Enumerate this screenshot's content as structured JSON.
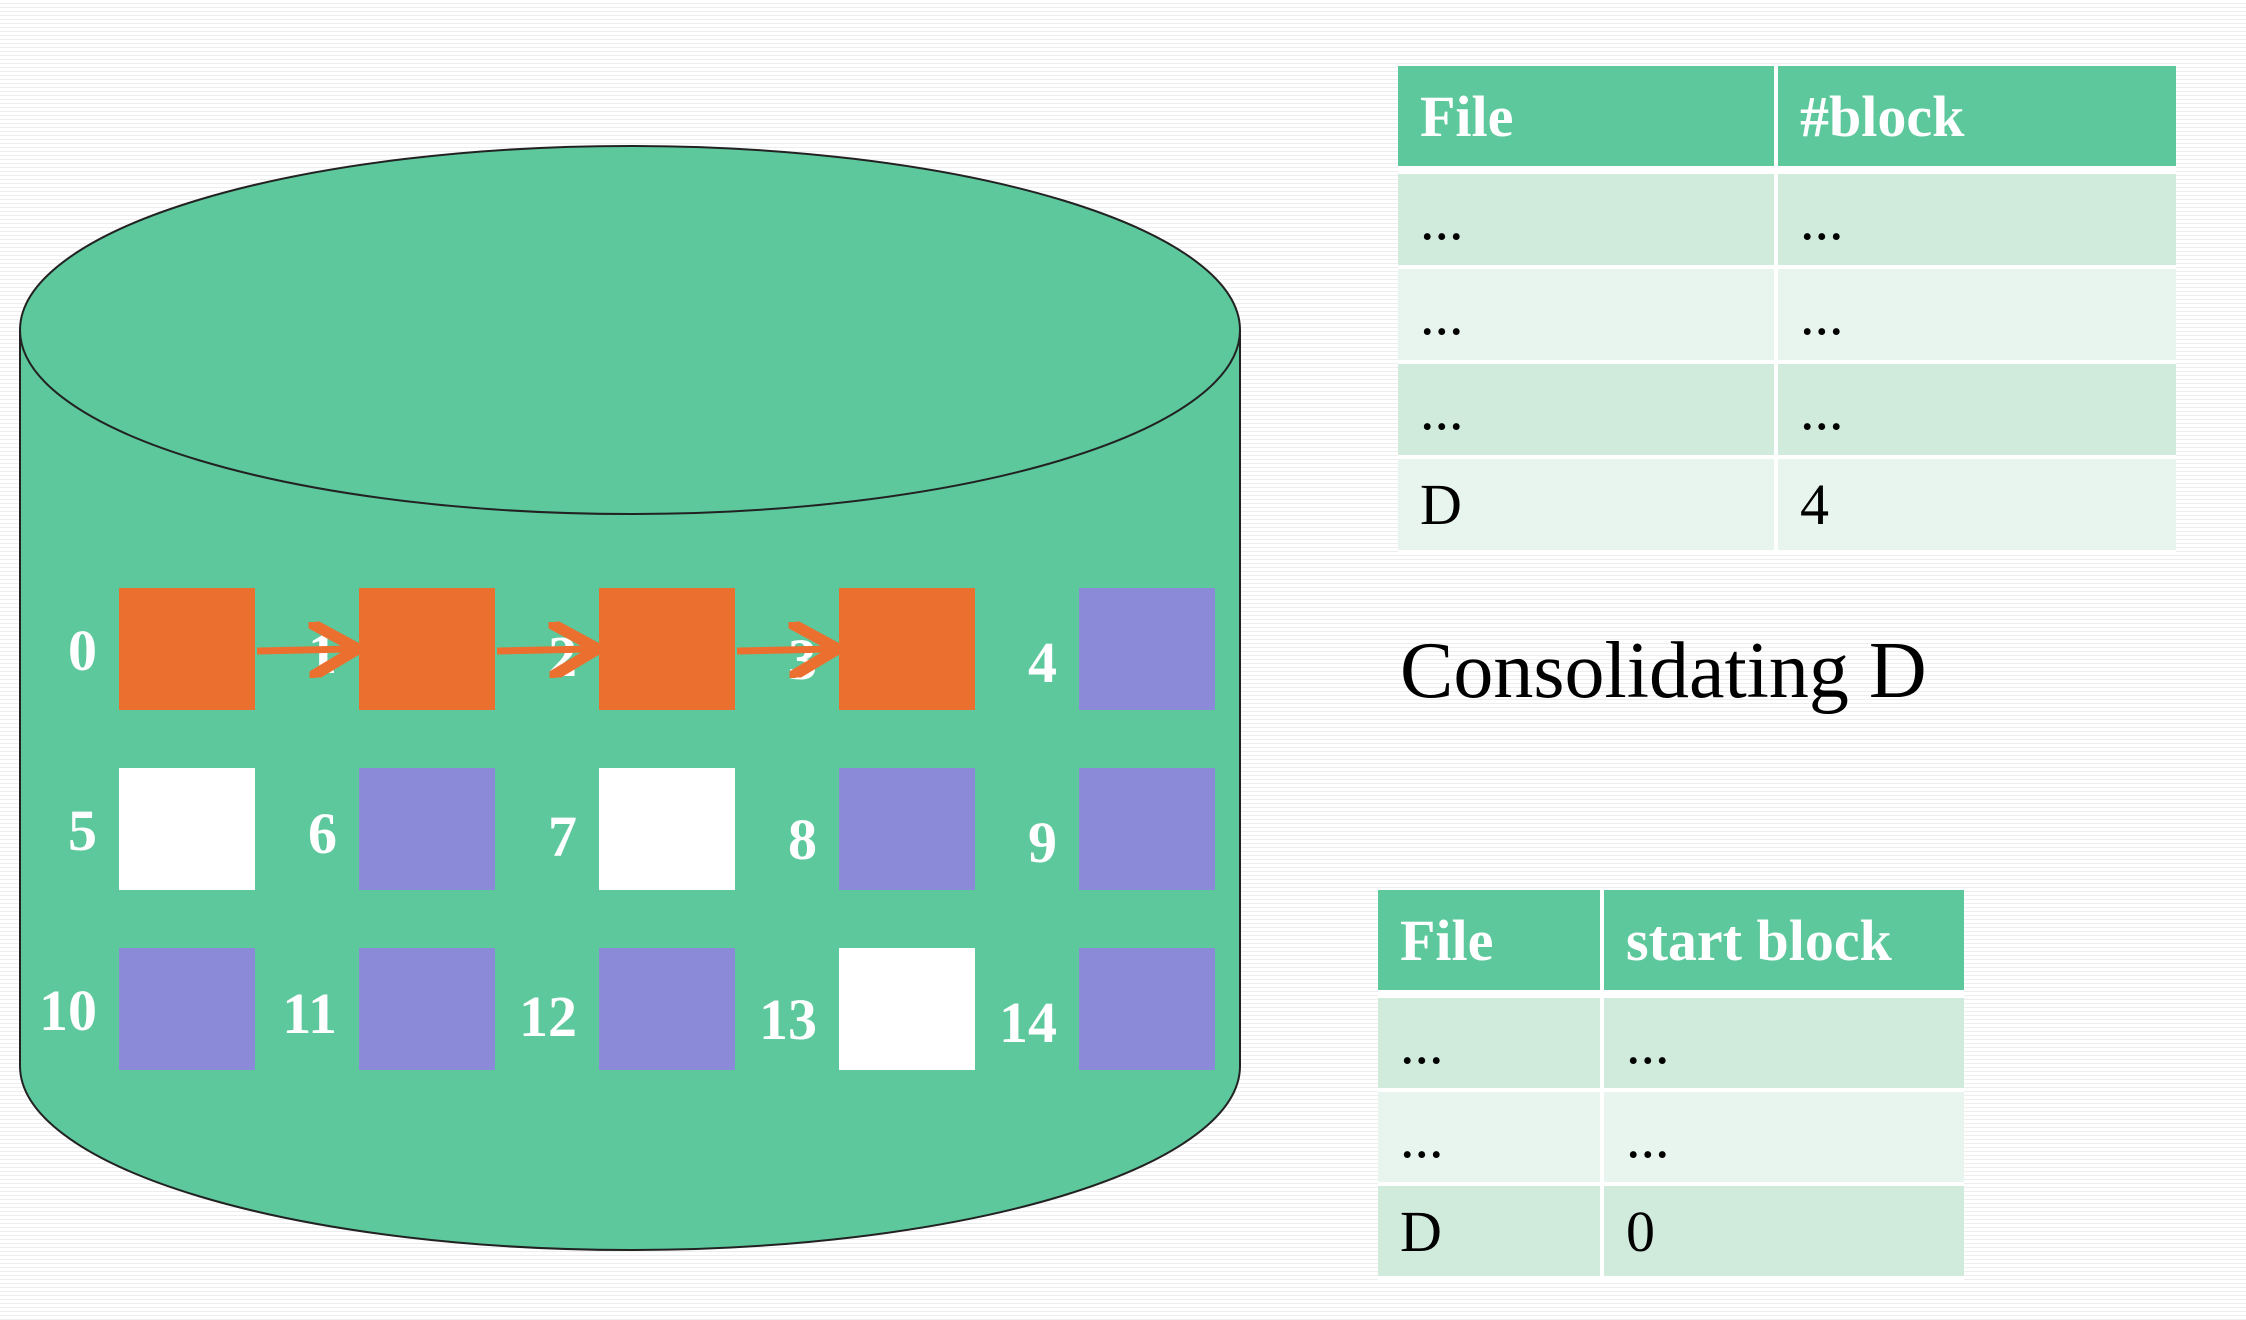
{
  "disk": {
    "blocks": [
      {
        "label": "0",
        "state": "file-d"
      },
      {
        "label": "1",
        "state": "file-d"
      },
      {
        "label": "2",
        "state": "file-d"
      },
      {
        "label": "3",
        "state": "file-d"
      },
      {
        "label": "4",
        "state": "used"
      },
      {
        "label": "5",
        "state": "free"
      },
      {
        "label": "6",
        "state": "used"
      },
      {
        "label": "7",
        "state": "free"
      },
      {
        "label": "8",
        "state": "used"
      },
      {
        "label": "9",
        "state": "used"
      },
      {
        "label": "10",
        "state": "used"
      },
      {
        "label": "11",
        "state": "used"
      },
      {
        "label": "12",
        "state": "used"
      },
      {
        "label": "13",
        "state": "free"
      },
      {
        "label": "14",
        "state": "used"
      }
    ],
    "links": [
      [
        0,
        1
      ],
      [
        1,
        2
      ],
      [
        2,
        3
      ]
    ]
  },
  "colors": {
    "disk": "#5cc89c",
    "file-d": "#eb7030",
    "used": "#8a8ad8",
    "free": "#ffffff",
    "arrow": "#eb7030"
  },
  "table_top": {
    "headers": [
      "File",
      "#block"
    ],
    "rows": [
      [
        "...",
        "..."
      ],
      [
        "...",
        "..."
      ],
      [
        "...",
        "..."
      ],
      [
        "D",
        "4"
      ]
    ]
  },
  "caption": "Consolidating D",
  "table_bottom": {
    "headers": [
      "File",
      "start block"
    ],
    "rows": [
      [
        "...",
        "..."
      ],
      [
        "...",
        "..."
      ],
      [
        "D",
        "0"
      ]
    ]
  }
}
